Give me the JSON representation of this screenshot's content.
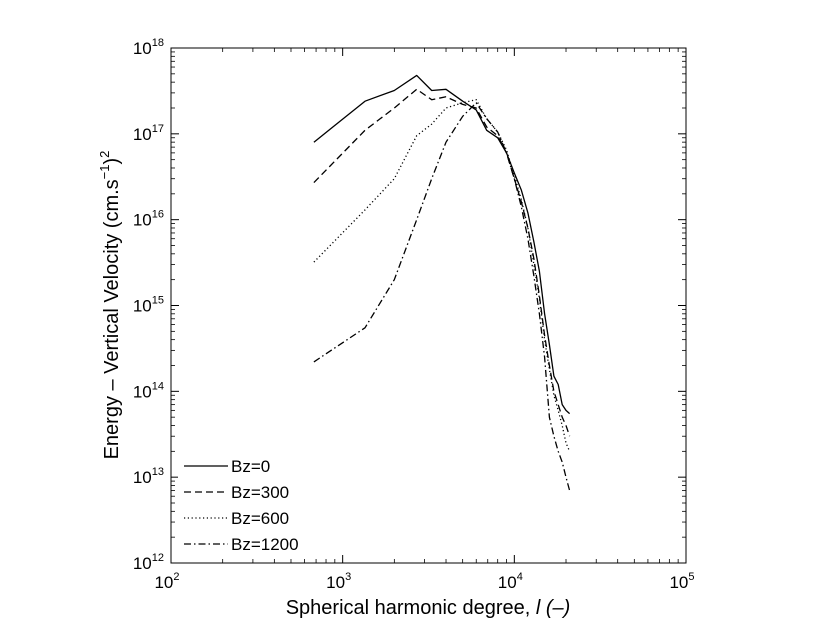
{
  "chart_data": {
    "type": "line",
    "xscale": "log",
    "yscale": "log",
    "xlim": [
      100,
      100000
    ],
    "ylim": [
      1000000000000.0,
      1e+18
    ],
    "x_ticks": [
      {
        "value": 100,
        "base": "10",
        "exp": "2"
      },
      {
        "value": 1000,
        "base": "10",
        "exp": "3"
      },
      {
        "value": 10000,
        "base": "10",
        "exp": "4"
      },
      {
        "value": 100000,
        "base": "10",
        "exp": "5"
      }
    ],
    "y_ticks": [
      {
        "value": 1000000000000.0,
        "base": "10",
        "exp": "12"
      },
      {
        "value": 10000000000000.0,
        "base": "10",
        "exp": "13"
      },
      {
        "value": 100000000000000.0,
        "base": "10",
        "exp": "14"
      },
      {
        "value": 1000000000000000.0,
        "base": "10",
        "exp": "15"
      },
      {
        "value": 1e+16,
        "base": "10",
        "exp": "16"
      },
      {
        "value": 1e+17,
        "base": "10",
        "exp": "17"
      },
      {
        "value": 1e+18,
        "base": "10",
        "exp": "18"
      }
    ],
    "xlabel": "Spherical harmonic degree, ",
    "xlabel_var": "l",
    "xlabel_unit": " (–)",
    "ylabel": "Energy – Vertical Velocity  (cm.s",
    "ylabel_sup": "−1",
    "ylabel_end": ")",
    "ylabel_sup2": "2",
    "grid": false,
    "legend_position": "bottom-left",
    "series": [
      {
        "name": "Bz=0",
        "dash": "solid",
        "x": [
          680,
          1350,
          2000,
          2700,
          3300,
          4000,
          5000,
          6000,
          6900,
          8000,
          9000,
          10000,
          11000,
          12000,
          13000,
          14000,
          15000,
          16000,
          17000,
          18000,
          19000,
          20000,
          21000
        ],
        "y": [
          8e+16,
          2.4e+17,
          3.2e+17,
          4.8e+17,
          3.2e+17,
          3.3e+17,
          2.4e+17,
          1.9e+17,
          1.1e+17,
          9e+16,
          6e+16,
          3.5e+16,
          2.2e+16,
          1.2e+16,
          5500000000000000.0,
          2500000000000000.0,
          800000000000000.0,
          350000000000000.0,
          150000000000000.0,
          120000000000000.0,
          70000000000000.0,
          60000000000000.0,
          55000000000000.0
        ]
      },
      {
        "name": "Bz=300",
        "dash": "dashed",
        "x": [
          680,
          1350,
          2000,
          2700,
          3300,
          4000,
          5000,
          6000,
          6900,
          8000,
          9000,
          10000,
          11000,
          12000,
          13000,
          14000,
          15000,
          16000,
          17000,
          18000,
          19000,
          20000,
          21000
        ],
        "y": [
          2.7e+16,
          1.1e+17,
          2e+17,
          3.3e+17,
          2.5e+17,
          2.7e+17,
          2.2e+17,
          2e+17,
          1.2e+17,
          9.5e+16,
          6e+16,
          3e+16,
          1.6e+16,
          8000000000000000.0,
          3500000000000000.0,
          1300000000000000.0,
          450000000000000.0,
          200000000000000.0,
          100000000000000.0,
          70000000000000.0,
          50000000000000.0,
          40000000000000.0,
          30000000000000.0
        ]
      },
      {
        "name": "Bz=600",
        "dash": "dotted",
        "x": [
          680,
          1350,
          2000,
          2700,
          3300,
          4000,
          5000,
          6000,
          6900,
          8000,
          9000,
          10000,
          11000,
          12000,
          13000,
          14000,
          15000,
          16000,
          17000,
          18000,
          19000,
          20000,
          21000
        ],
        "y": [
          3200000000000000.0,
          1.3e+16,
          3e+16,
          9.5e+16,
          1.3e+17,
          2e+17,
          2.3e+17,
          2.5e+17,
          1.5e+17,
          1.05e+17,
          6.5e+16,
          3.3e+16,
          1.7e+16,
          8000000000000000.0,
          3000000000000000.0,
          1200000000000000.0,
          400000000000000.0,
          180000000000000.0,
          90000000000000.0,
          60000000000000.0,
          40000000000000.0,
          25000000000000.0,
          20000000000000.0
        ]
      },
      {
        "name": "Bz=1200",
        "dash": "dashdot",
        "x": [
          680,
          1350,
          2000,
          2700,
          3300,
          4000,
          5000,
          6000,
          6900,
          8000,
          9000,
          10000,
          11000,
          12000,
          13000,
          14000,
          15000,
          16000,
          17000,
          18000,
          19000,
          20000,
          21000
        ],
        "y": [
          220000000000000.0,
          550000000000000.0,
          2000000000000000.0,
          1e+16,
          3e+16,
          8e+16,
          1.6e+17,
          2.3e+17,
          1.5e+17,
          1.05e+17,
          6e+16,
          3e+16,
          1.4e+16,
          6000000000000000.0,
          2200000000000000.0,
          800000000000000.0,
          250000000000000.0,
          50000000000000.0,
          30000000000000.0,
          20000000000000.0,
          15000000000000.0,
          10000000000000.0,
          7000000000000.0
        ]
      }
    ]
  }
}
